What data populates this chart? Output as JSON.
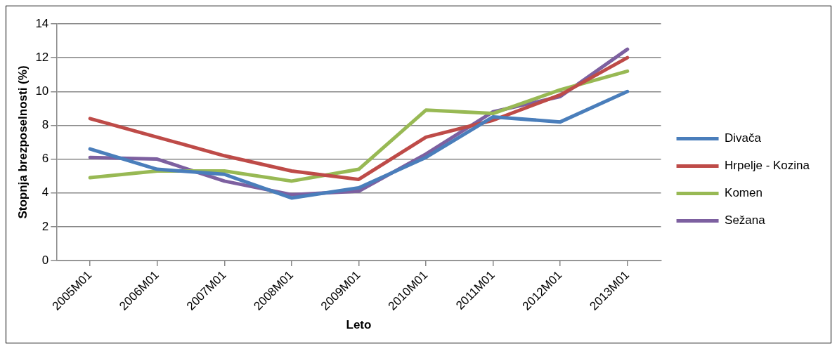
{
  "chart_data": {
    "type": "line",
    "xlabel": "Leto",
    "ylabel": "Stopnja brezposelnosti (%)",
    "categories": [
      "2005M01",
      "2006M01",
      "2007M01",
      "2008M01",
      "2009M01",
      "2010M01",
      "2011M01",
      "2012M01",
      "2013M01"
    ],
    "series": [
      {
        "name": "Divača",
        "color": "#4a7ebb",
        "values": [
          6.6,
          5.4,
          5.1,
          3.7,
          4.3,
          6.1,
          8.5,
          8.2,
          10.0
        ]
      },
      {
        "name": "Hrpelje - Kozina",
        "color": "#be4b48",
        "values": [
          8.4,
          7.3,
          6.2,
          5.3,
          4.8,
          7.3,
          8.3,
          9.8,
          12.0
        ]
      },
      {
        "name": "Komen",
        "color": "#98b954",
        "values": [
          4.9,
          5.3,
          5.3,
          4.7,
          5.4,
          8.9,
          8.7,
          10.1,
          11.2
        ]
      },
      {
        "name": "Sežana",
        "color": "#7d60a0",
        "values": [
          6.1,
          6.0,
          4.7,
          3.9,
          4.1,
          6.3,
          8.8,
          9.7,
          12.5
        ]
      }
    ],
    "ylim": [
      0,
      14
    ],
    "yticks": [
      0,
      2,
      4,
      6,
      8,
      10,
      12,
      14
    ],
    "grid": "y",
    "legend": "right",
    "marker": "none",
    "line_style": "solid"
  }
}
